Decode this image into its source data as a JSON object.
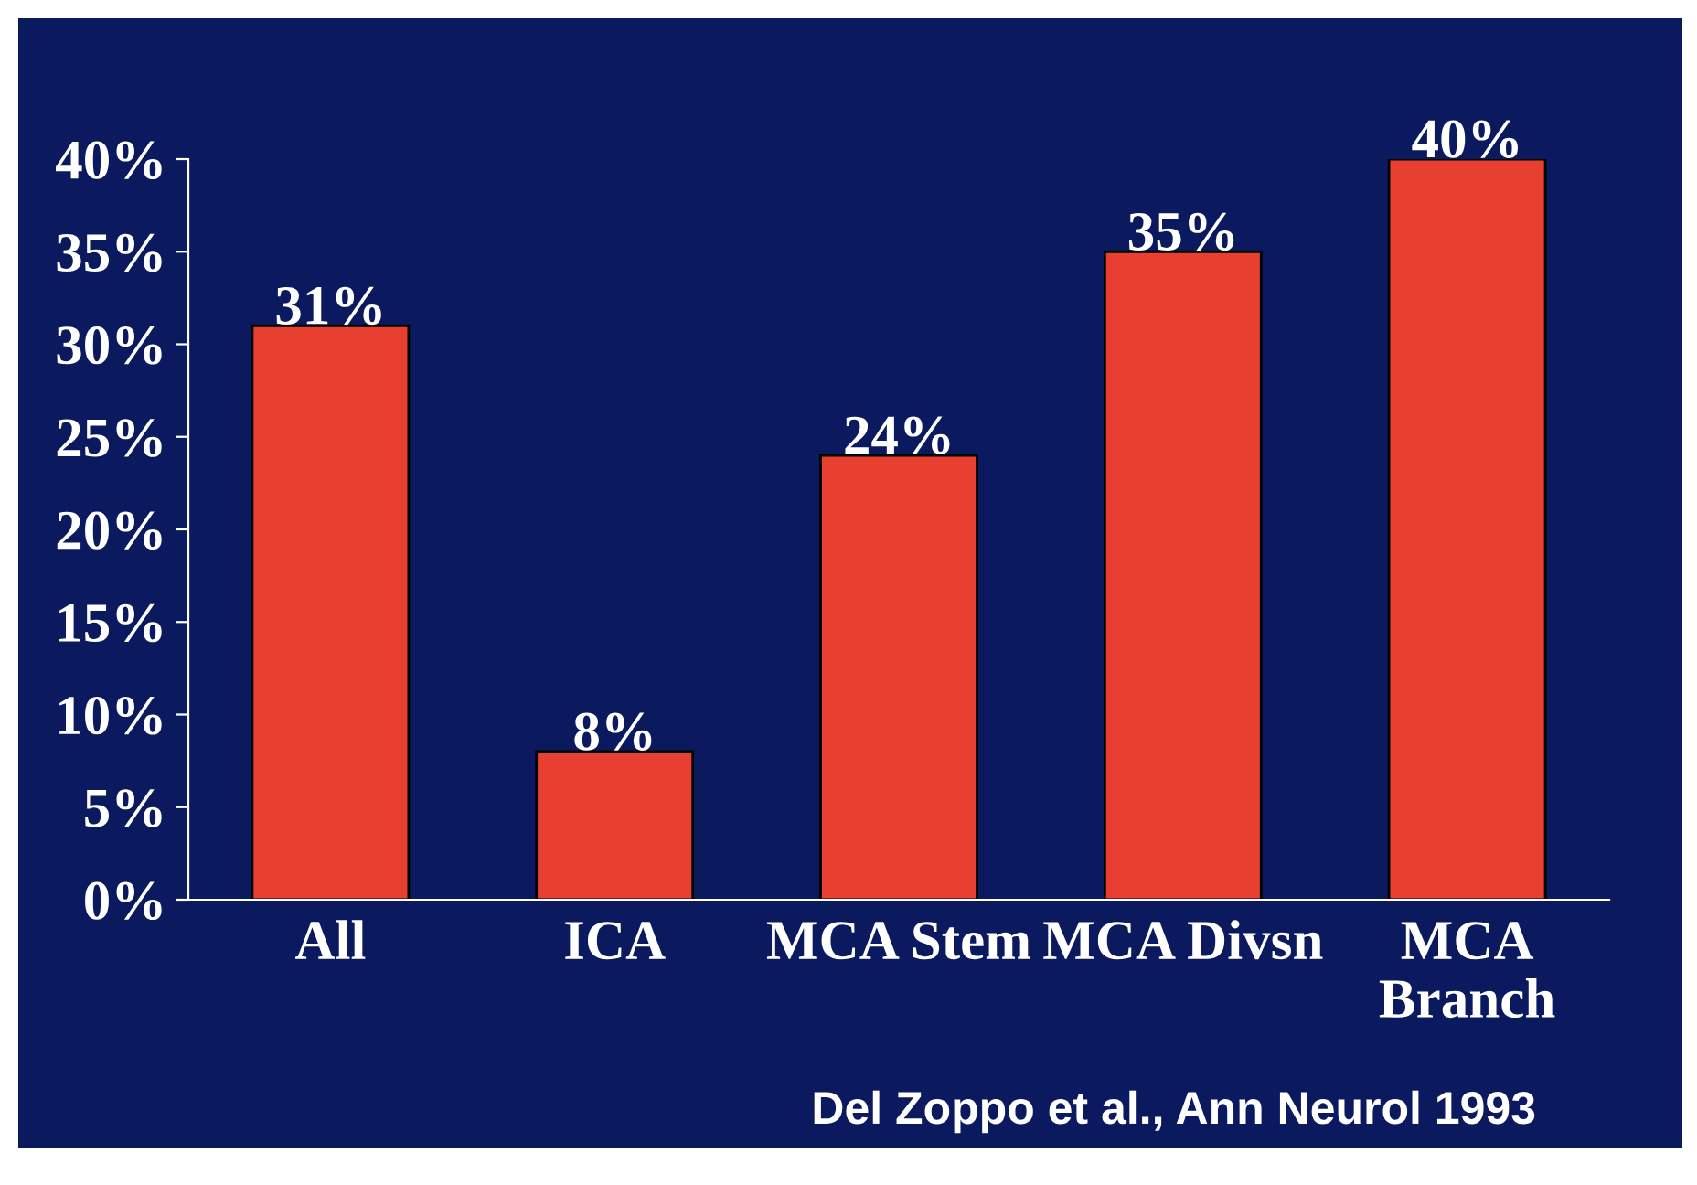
{
  "chart_data": {
    "type": "bar",
    "categories": [
      "All",
      "ICA",
      "MCA Stem",
      "MCA Divsn",
      "MCA\nBranch"
    ],
    "values": [
      31,
      8,
      24,
      35,
      40
    ],
    "value_labels": [
      "31%",
      "8%",
      "24%",
      "35%",
      "40%"
    ],
    "color": "#e84030",
    "ylim": [
      0,
      40
    ],
    "yticks": [
      {
        "value": 0,
        "label": "0%"
      },
      {
        "value": 5,
        "label": "5%"
      },
      {
        "value": 10,
        "label": "10%"
      },
      {
        "value": 15,
        "label": "15%"
      },
      {
        "value": 20,
        "label": "20%"
      },
      {
        "value": 25,
        "label": "25%"
      },
      {
        "value": 30,
        "label": "30%"
      },
      {
        "value": 35,
        "label": "35%"
      },
      {
        "value": 40,
        "label": "40%"
      }
    ],
    "annotations": [
      "Del Zoppo et al., Ann Neurol 1993"
    ]
  }
}
